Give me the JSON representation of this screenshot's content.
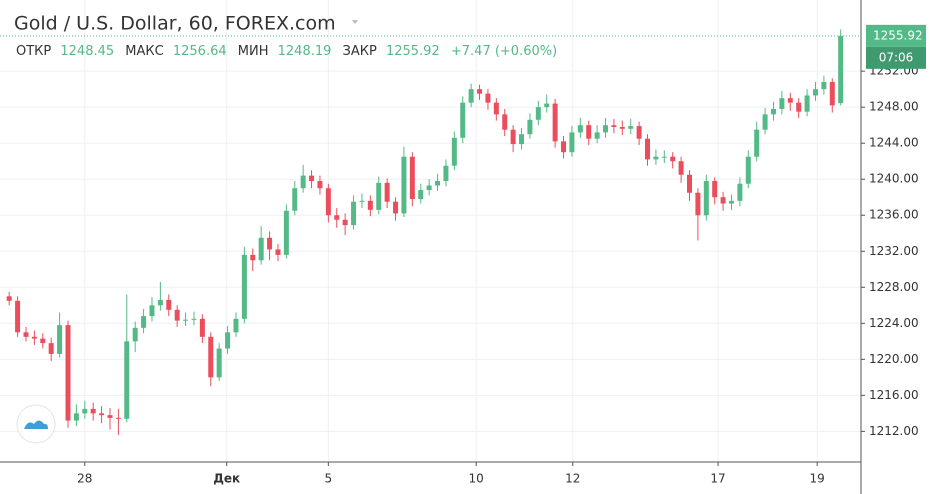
{
  "chart_data": {
    "type": "candlestick",
    "title": "Gold / U.S. Dollar, 60, FOREX.com",
    "legend": {
      "open_label": "ОТКР",
      "open": 1248.45,
      "high_label": "МАКС",
      "high": 1256.64,
      "low_label": "МИН",
      "low": 1248.19,
      "close_label": "ЗАКР",
      "close": 1255.92,
      "change": "+7.47 (+0.60%)"
    },
    "last_price": 1255.92,
    "countdown": "07:06",
    "up_color": "#53b987",
    "down_color": "#eb4d5c",
    "grid": true,
    "xlim": [
      0,
      101.8
    ],
    "xticks": [
      {
        "value": 9.5,
        "label": "28"
      },
      {
        "value": 26.4,
        "label": "Дек"
      },
      {
        "value": 38.5,
        "label": "5"
      },
      {
        "value": 56.1,
        "label": "10"
      },
      {
        "value": 67.6,
        "label": "12"
      },
      {
        "value": 84.9,
        "label": "17"
      },
      {
        "value": 96.7,
        "label": "19"
      }
    ],
    "ylim": [
      1208.6,
      1259.9
    ],
    "yticks": [
      {
        "value": 1212,
        "label": "1212.00"
      },
      {
        "value": 1216,
        "label": "1216.00"
      },
      {
        "value": 1220,
        "label": "1220.00"
      },
      {
        "value": 1224,
        "label": "1224.00"
      },
      {
        "value": 1228,
        "label": "1228.00"
      },
      {
        "value": 1232,
        "label": "1232.00"
      },
      {
        "value": 1236,
        "label": "1236.00"
      },
      {
        "value": 1240,
        "label": "1240.00"
      },
      {
        "value": 1244,
        "label": "1244.00"
      },
      {
        "value": 1248,
        "label": "1248.00"
      },
      {
        "value": 1252,
        "label": "1252.00"
      }
    ],
    "open": [
      1227,
      1226.5,
      1223,
      1222.5,
      1222.3,
      1221.8,
      1220.6,
      1223.8,
      1213.2,
      1214,
      1214.5,
      1214,
      1213.8,
      1213.5,
      1213.4,
      1222,
      1223.5,
      1224.8,
      1226,
      1226.6,
      1225.5,
      1224.3,
      1224.4,
      1224.5,
      1222.5,
      1218,
      1221.2,
      1223,
      1224.5,
      1231.6,
      1231,
      1233.5,
      1232.2,
      1231.6,
      1236.5,
      1239,
      1240.4,
      1239.8,
      1239,
      1236,
      1235.5,
      1234.9,
      1237.5,
      1237.6,
      1236.6,
      1239.6,
      1237.5,
      1236.2,
      1242.5,
      1237.8,
      1238.8,
      1239.3,
      1239.8,
      1241.5,
      1244.6,
      1248.5,
      1250,
      1249.5,
      1248.5,
      1247.2,
      1245.5,
      1243.9,
      1245,
      1246.6,
      1248,
      1248.4,
      1244.2,
      1243,
      1245.2,
      1246,
      1244.5,
      1245.2,
      1246,
      1245.8,
      1245.6,
      1245.9,
      1244.5,
      1242.2,
      1242.5,
      1242.5,
      1242,
      1240.5,
      1238.5,
      1236,
      1239.8,
      1238,
      1237.3,
      1237.6,
      1239.5,
      1242.5,
      1245.5,
      1247.2,
      1247.8,
      1249,
      1248.5,
      1247.5,
      1249.3,
      1250,
      1250.8,
      1248.45
    ],
    "high": [
      1227.5,
      1227,
      1223.6,
      1223.2,
      1222.9,
      1222.4,
      1225.2,
      1224.3,
      1215,
      1215.4,
      1215.2,
      1214.8,
      1214.6,
      1214.5,
      1227.2,
      1224.2,
      1225.6,
      1226.9,
      1228.6,
      1227.2,
      1226,
      1225.2,
      1225.3,
      1225,
      1223,
      1221.8,
      1223.7,
      1225.2,
      1232.5,
      1232.3,
      1234.8,
      1234.2,
      1232.8,
      1237.2,
      1239.8,
      1241.6,
      1241,
      1240.4,
      1239.5,
      1236.8,
      1236.2,
      1238.2,
      1238.4,
      1238.2,
      1240.3,
      1240.1,
      1238,
      1243.6,
      1243,
      1239.5,
      1240,
      1240.6,
      1242.2,
      1245.3,
      1249.2,
      1250.6,
      1250.5,
      1250,
      1249,
      1247.8,
      1246,
      1245.7,
      1247.3,
      1248.7,
      1249.4,
      1248.9,
      1244.8,
      1245.9,
      1246.8,
      1246.5,
      1246,
      1246.8,
      1246.7,
      1246.5,
      1246.7,
      1246.4,
      1245,
      1243.3,
      1243.2,
      1243,
      1242.5,
      1241,
      1239,
      1240.5,
      1240.2,
      1238.6,
      1238.3,
      1240.2,
      1243.2,
      1246.4,
      1247.9,
      1248.6,
      1249.8,
      1249.6,
      1249,
      1250,
      1250.8,
      1251.5,
      1251.2,
      1256.64
    ],
    "low": [
      1226,
      1222.5,
      1222,
      1221.6,
      1221.2,
      1219.8,
      1220.2,
      1212.4,
      1212.6,
      1213.4,
      1213.2,
      1212.9,
      1212.2,
      1211.6,
      1213,
      1220.8,
      1222.9,
      1224.2,
      1225.4,
      1224.8,
      1223.6,
      1223.7,
      1223.8,
      1221.8,
      1217,
      1217.6,
      1220.6,
      1222.5,
      1224,
      1229.8,
      1230.5,
      1231,
      1230.9,
      1231.2,
      1236,
      1238.5,
      1239,
      1238.3,
      1235.2,
      1234.6,
      1233.8,
      1234.4,
      1236.8,
      1235.9,
      1236.1,
      1236.8,
      1235.4,
      1235.8,
      1237,
      1237.3,
      1238.2,
      1238.7,
      1239.2,
      1241,
      1244,
      1248,
      1248.8,
      1247.7,
      1246.5,
      1244.8,
      1243,
      1243.3,
      1244.5,
      1246,
      1247.4,
      1243.5,
      1242.3,
      1242.5,
      1244.6,
      1243.8,
      1244,
      1244.6,
      1245.1,
      1244.9,
      1245,
      1243.8,
      1241.5,
      1241.6,
      1241.8,
      1241.2,
      1239.6,
      1237.6,
      1233.2,
      1235.4,
      1237.2,
      1236.5,
      1236.6,
      1237,
      1239,
      1242,
      1245,
      1246.5,
      1247.2,
      1247.6,
      1246.8,
      1247,
      1248.7,
      1249.4,
      1247.4,
      1248.19
    ],
    "close": [
      1226.5,
      1223,
      1222.5,
      1222.3,
      1221.8,
      1220.6,
      1223.8,
      1213.2,
      1214,
      1214.5,
      1214,
      1213.8,
      1213.5,
      1213.4,
      1222,
      1223.5,
      1224.8,
      1226,
      1226.6,
      1225.5,
      1224.3,
      1224.4,
      1224.5,
      1222.5,
      1218,
      1221.2,
      1223,
      1224.5,
      1231.6,
      1231,
      1233.5,
      1232.2,
      1231.6,
      1236.5,
      1239,
      1240.4,
      1239.8,
      1239,
      1236,
      1235.5,
      1234.9,
      1237.5,
      1237.6,
      1236.6,
      1239.6,
      1237.5,
      1236.2,
      1242.5,
      1237.8,
      1238.8,
      1239.3,
      1239.8,
      1241.5,
      1244.6,
      1248.5,
      1250,
      1249.5,
      1248.5,
      1247.2,
      1245.5,
      1243.9,
      1245,
      1246.6,
      1248,
      1248.4,
      1244.2,
      1243,
      1245.2,
      1246,
      1244.5,
      1245.2,
      1246,
      1245.8,
      1245.6,
      1245.9,
      1244.5,
      1242.2,
      1242.5,
      1242.5,
      1242,
      1240.5,
      1238.5,
      1236,
      1239.8,
      1238,
      1237.3,
      1237.6,
      1239.5,
      1242.5,
      1245.5,
      1247.2,
      1247.8,
      1249,
      1248.5,
      1247.5,
      1249.3,
      1250,
      1250.8,
      1248.2,
      1255.92
    ]
  }
}
